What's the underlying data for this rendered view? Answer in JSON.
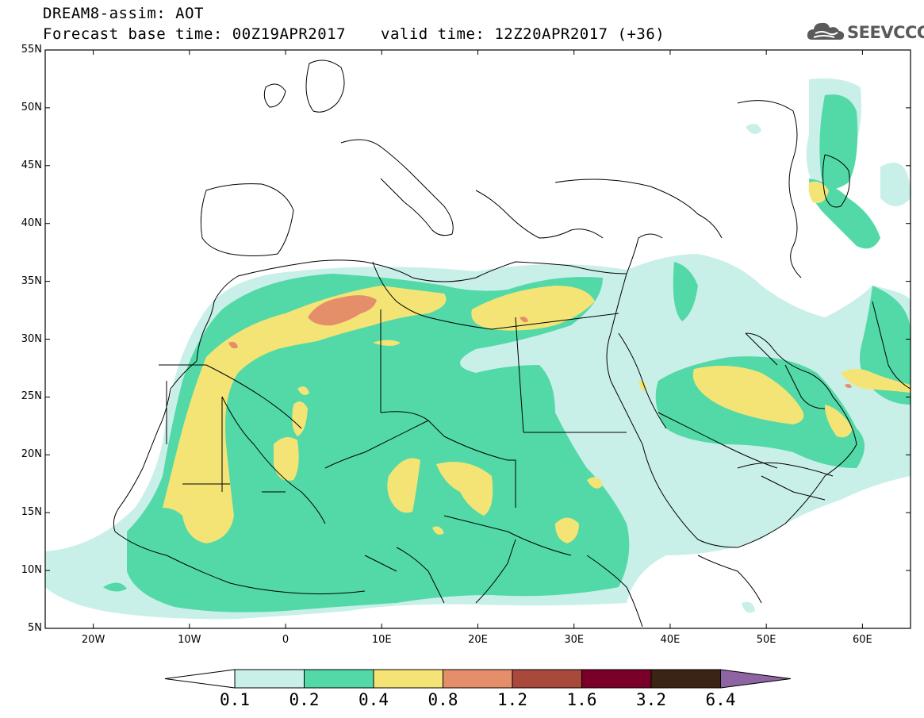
{
  "header": {
    "title_line1": "DREAM8-assim: AOT",
    "title_line2_base": "Forecast base time: 00Z19APR2017",
    "title_line2_valid": "valid time: 12Z20APR2017 (+36)",
    "logo_text": "SEEVCCC",
    "logo_icon": "cloud-icon"
  },
  "map": {
    "projection": "lat-lon",
    "lon_range": [
      -25,
      65
    ],
    "lat_range": [
      5,
      55
    ],
    "lat_ticks": [
      "5N",
      "10N",
      "15N",
      "20N",
      "25N",
      "30N",
      "35N",
      "40N",
      "45N",
      "50N",
      "55N"
    ],
    "lon_ticks": [
      "20W",
      "10W",
      "0",
      "10E",
      "20E",
      "30E",
      "40E",
      "50E",
      "60E"
    ],
    "variable": "Aerosol Optical Thickness"
  },
  "legend": {
    "levels": [
      "0.1",
      "0.2",
      "0.4",
      "0.8",
      "1.2",
      "1.6",
      "3.2",
      "6.4"
    ],
    "colors": [
      "#ffffff",
      "#c9efe9",
      "#52d9a7",
      "#f4e476",
      "#e58f6a",
      "#a9493c",
      "#7a0029",
      "#3b2414",
      "#8e64a2"
    ]
  }
}
